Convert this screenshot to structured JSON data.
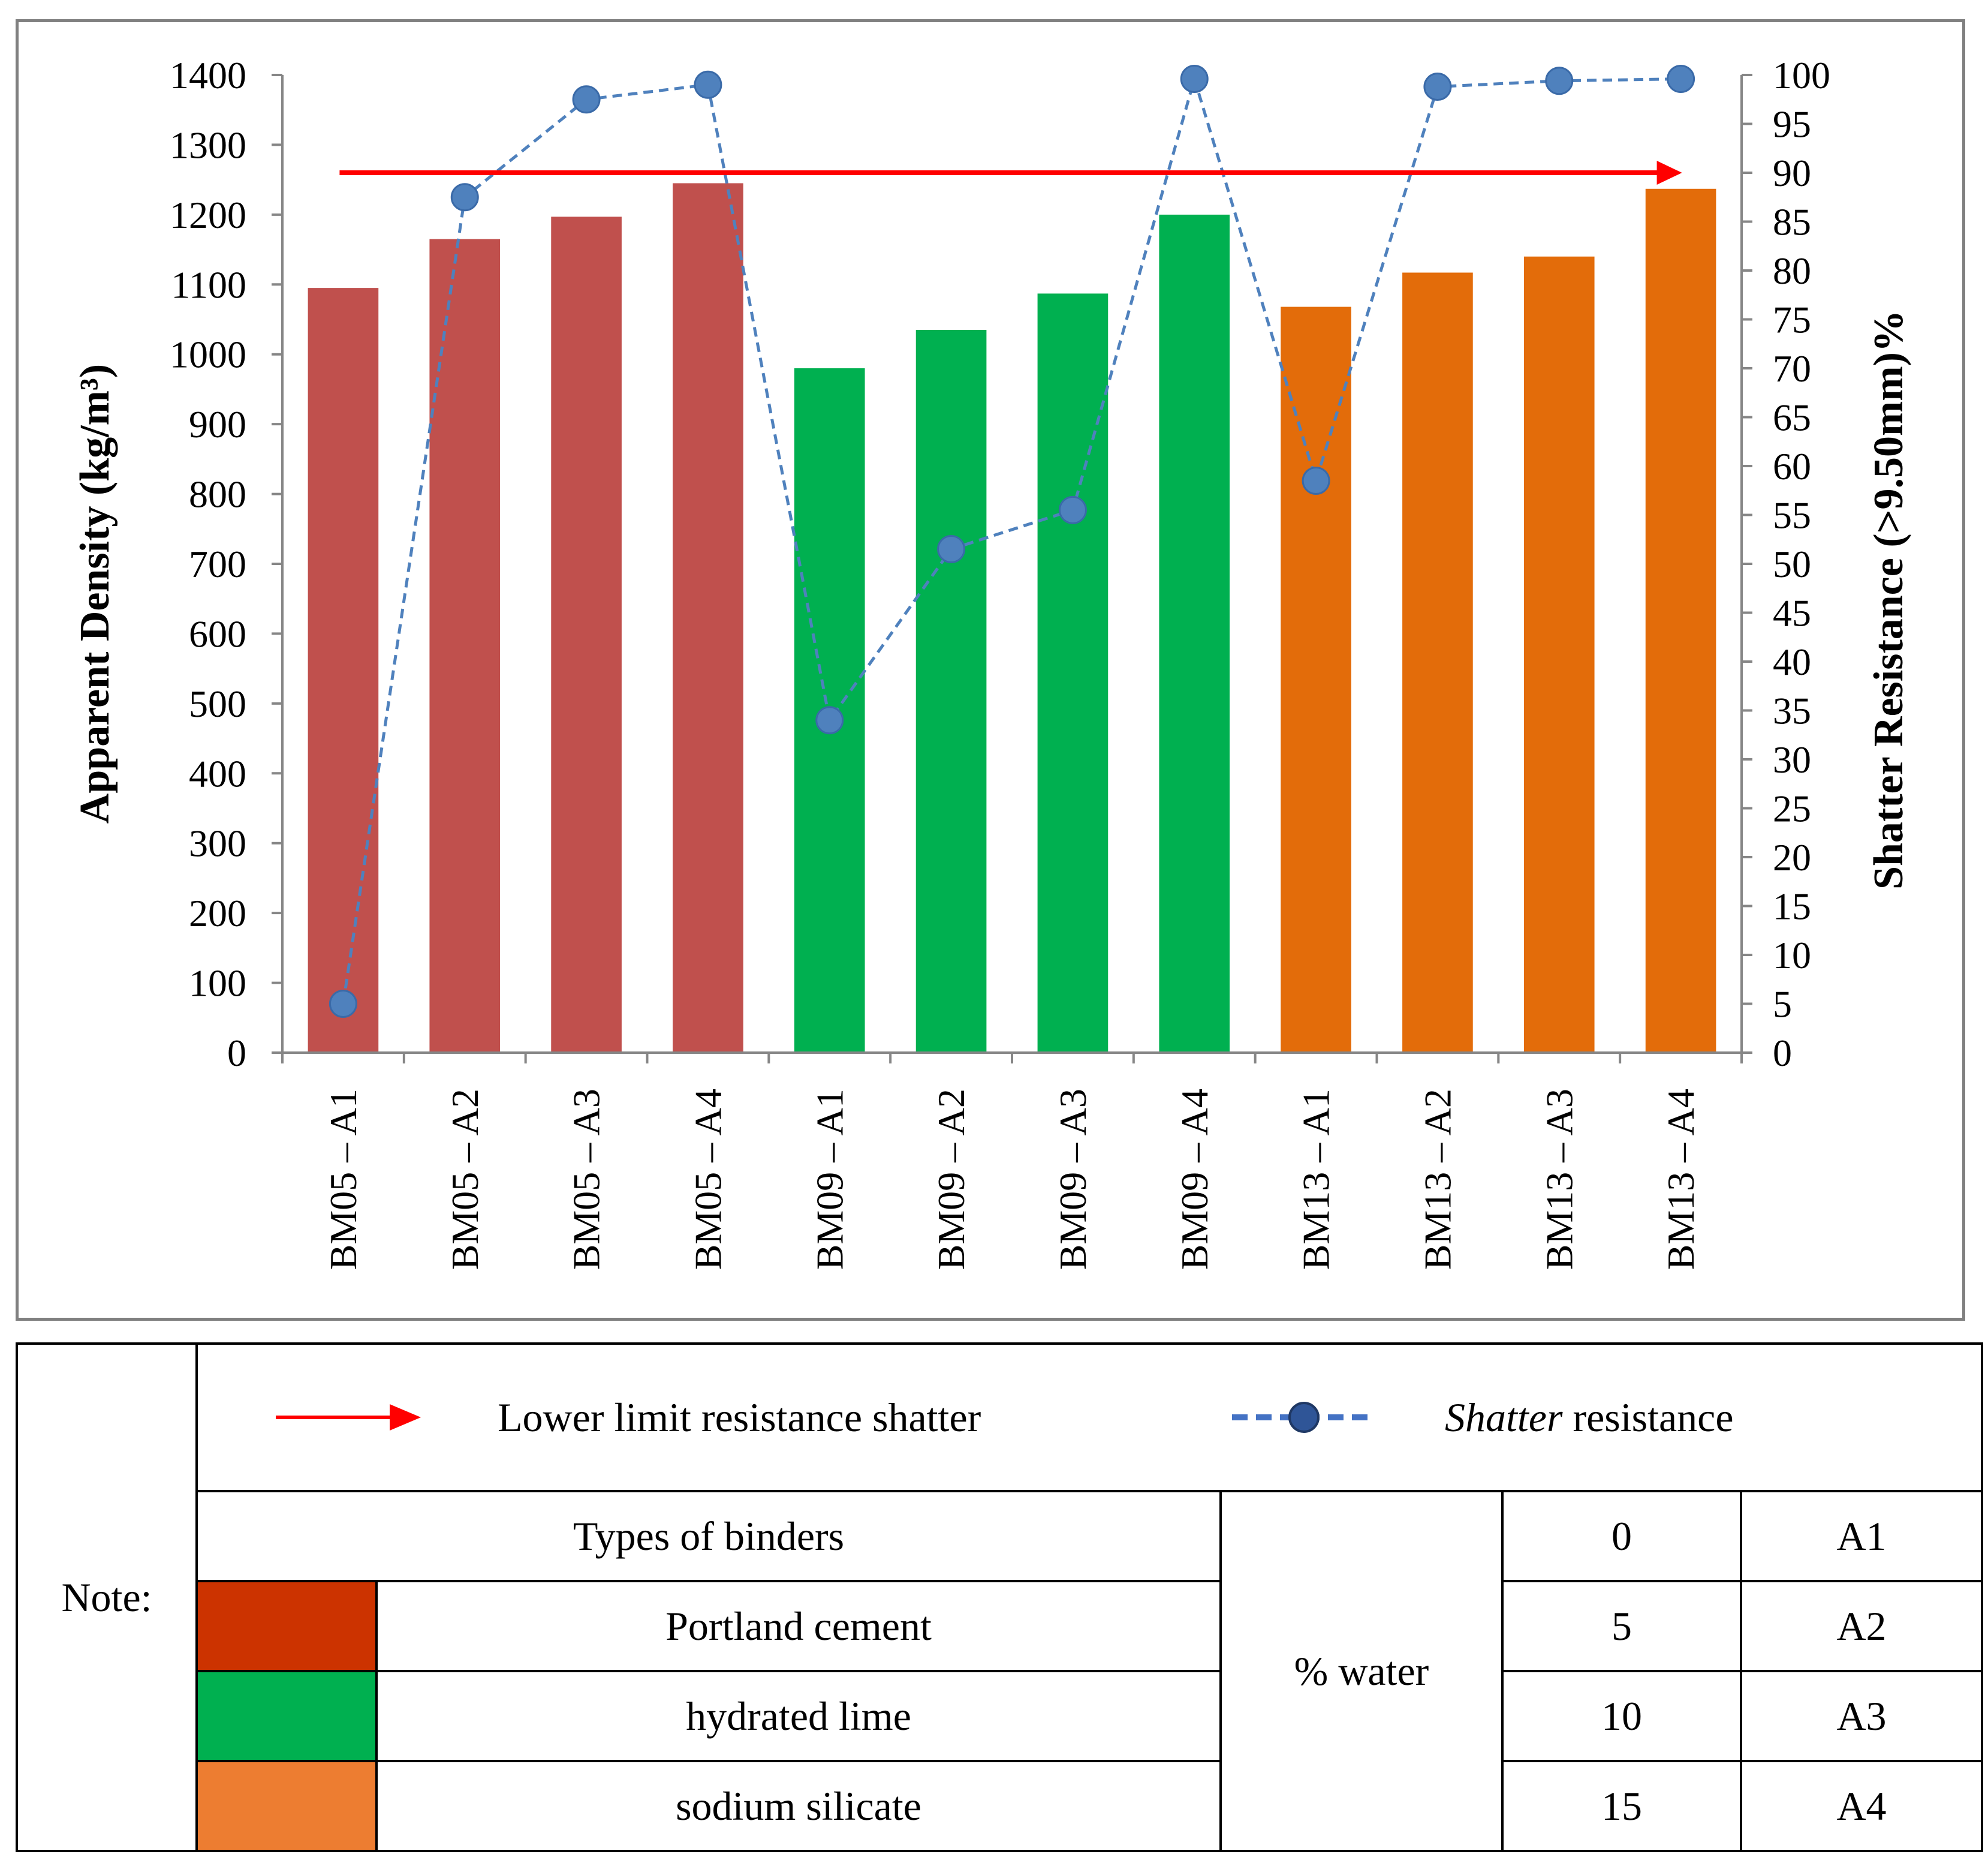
{
  "chart_data": {
    "type": "bar",
    "categories": [
      "BM05 – A1",
      "BM05 – A2",
      "BM05 – A3",
      "BM05 – A4",
      "BM09 – A1",
      "BM09 – A2",
      "BM09 – A3",
      "BM09 – A4",
      "BM13 – A1",
      "BM13 – A2",
      "BM13 – A3",
      "BM13 – A4"
    ],
    "series": [
      {
        "name": "Apparent Density",
        "axis": "left",
        "type": "bar",
        "values": [
          1095,
          1165,
          1197,
          1245,
          980,
          1035,
          1087,
          1200,
          1068,
          1117,
          1140,
          1237
        ]
      },
      {
        "name": "Shatter resistance",
        "axis": "right",
        "type": "line",
        "values": [
          5,
          87.5,
          97.5,
          99,
          34,
          51.5,
          55.5,
          99.6,
          58.5,
          98.8,
          99.4,
          99.6
        ]
      }
    ],
    "bar_colors": [
      "#c0504d",
      "#c0504d",
      "#c0504d",
      "#c0504d",
      "#00b050",
      "#00b050",
      "#00b050",
      "#00b050",
      "#e36c0a",
      "#e36c0a",
      "#e36c0a",
      "#e36c0a"
    ],
    "line_color": "#4f81bd",
    "limit_line": {
      "value": 90,
      "axis": "right",
      "color": "#ff0000"
    },
    "ylabel_left": "Apparent Density (kg/m³)",
    "ylabel_right": "Shatter Resistance (>9.50mm)%",
    "ylim_left": [
      0,
      1400
    ],
    "yticks_left": [
      "0",
      "100",
      "200",
      "300",
      "400",
      "500",
      "600",
      "700",
      "800",
      "900",
      "1000",
      "1100",
      "1200",
      "1300",
      "1400"
    ],
    "ylim_right": [
      0,
      100
    ],
    "yticks_right": [
      "0",
      "5",
      "10",
      "15",
      "20",
      "25",
      "30",
      "35",
      "40",
      "45",
      "50",
      "55",
      "60",
      "65",
      "70",
      "75",
      "80",
      "85",
      "90",
      "95",
      "100"
    ],
    "grid": false
  },
  "legend": {
    "note_label": "Note:",
    "limit_label": "Lower limit resistance shatter",
    "shatter_label_italic": "Shatter",
    "shatter_label_rest": " resistance",
    "binders_header": "Types of binders",
    "binders": [
      {
        "name": "Portland cement",
        "color": "#cc3300"
      },
      {
        "name": "hydrated lime",
        "color": "#00b050"
      },
      {
        "name": "sodium silicate",
        "color": "#ed7d31"
      }
    ],
    "water_label": "% water",
    "water_levels": [
      {
        "percent": "0",
        "code": "A1"
      },
      {
        "percent": "5",
        "code": "A2"
      },
      {
        "percent": "10",
        "code": "A3"
      },
      {
        "percent": "15",
        "code": "A4"
      }
    ]
  }
}
